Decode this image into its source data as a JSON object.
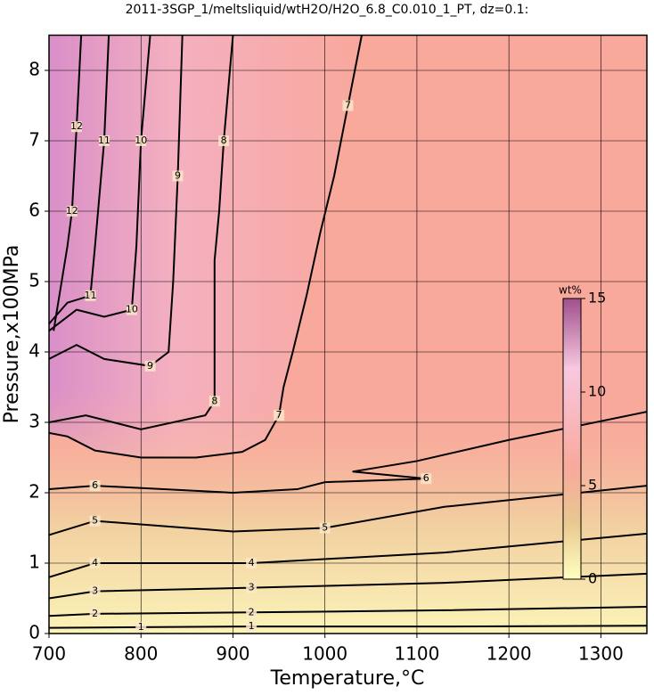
{
  "chart_data": {
    "type": "contour",
    "title": "2011-3SGP_1/meltsliquid/wtH2O/H2O_6.8_C0.010_1_PT, dz=0.1:",
    "xlabel": "Temperature,°C",
    "ylabel": "Pressure,x100MPa",
    "xlim": [
      700,
      1350
    ],
    "ylim": [
      0,
      8.5
    ],
    "xticks": [
      700,
      800,
      900,
      1000,
      1100,
      1200,
      1300
    ],
    "yticks": [
      0,
      1,
      2,
      3,
      4,
      5,
      6,
      7,
      8
    ],
    "grid": true,
    "contours": [
      {
        "level": 1,
        "x": [
          700,
          800,
          920,
          1130,
          1350
        ],
        "y": [
          0.08,
          0.09,
          0.1,
          0.1,
          0.11
        ]
      },
      {
        "level": 2,
        "x": [
          700,
          750,
          920,
          1130,
          1350
        ],
        "y": [
          0.25,
          0.28,
          0.3,
          0.33,
          0.38
        ]
      },
      {
        "level": 3,
        "x": [
          700,
          750,
          920,
          1130,
          1350
        ],
        "y": [
          0.5,
          0.6,
          0.65,
          0.72,
          0.85
        ]
      },
      {
        "level": 4,
        "x": [
          700,
          750,
          920,
          1130,
          1350
        ],
        "y": [
          0.8,
          1.0,
          1.0,
          1.15,
          1.42
        ]
      },
      {
        "level": 5,
        "x": [
          700,
          750,
          900,
          1000,
          1130,
          1350
        ],
        "y": [
          1.4,
          1.6,
          1.45,
          1.5,
          1.8,
          2.1
        ]
      },
      {
        "level": 6,
        "x": [
          700,
          750,
          900,
          970,
          1000,
          1110,
          1030,
          1100,
          1200,
          1350
        ],
        "y": [
          2.05,
          2.1,
          2.0,
          2.05,
          2.15,
          2.2,
          2.3,
          2.45,
          2.75,
          3.15
        ]
      },
      {
        "level": 7,
        "x": [
          1040,
          1025,
          1010,
          995,
          980,
          965,
          955,
          950,
          935,
          910,
          860,
          800,
          750,
          720,
          700
        ],
        "y": [
          8.5,
          7.5,
          6.5,
          5.7,
          4.8,
          4.0,
          3.5,
          3.1,
          2.75,
          2.58,
          2.5,
          2.5,
          2.6,
          2.8,
          2.85
        ]
      },
      {
        "level": 8,
        "x": [
          900,
          890,
          885,
          880,
          880,
          870,
          800,
          740,
          700
        ],
        "y": [
          8.5,
          7.0,
          6.0,
          5.3,
          3.3,
          3.1,
          2.9,
          3.1,
          3.0
        ]
      },
      {
        "level": 9,
        "x": [
          845,
          840,
          835,
          830,
          810,
          760,
          730,
          700
        ],
        "y": [
          8.5,
          6.5,
          5.0,
          4.0,
          3.8,
          3.9,
          4.1,
          3.9
        ]
      },
      {
        "level": 10,
        "x": [
          810,
          800,
          795,
          790,
          760,
          730,
          700
        ],
        "y": [
          8.5,
          7.0,
          5.5,
          4.6,
          4.5,
          4.6,
          4.3
        ]
      },
      {
        "level": 11,
        "x": [
          765,
          760,
          750,
          745,
          720,
          700
        ],
        "y": [
          8.5,
          7.0,
          5.5,
          4.8,
          4.7,
          4.4
        ]
      },
      {
        "level": 12,
        "x": [
          735,
          730,
          725,
          720,
          705
        ],
        "y": [
          8.5,
          7.2,
          6.0,
          5.5,
          4.3
        ]
      }
    ],
    "colorbar": {
      "label": "wt%",
      "lim": [
        0,
        15
      ],
      "ticks": [
        0,
        5,
        10,
        15
      ]
    }
  }
}
